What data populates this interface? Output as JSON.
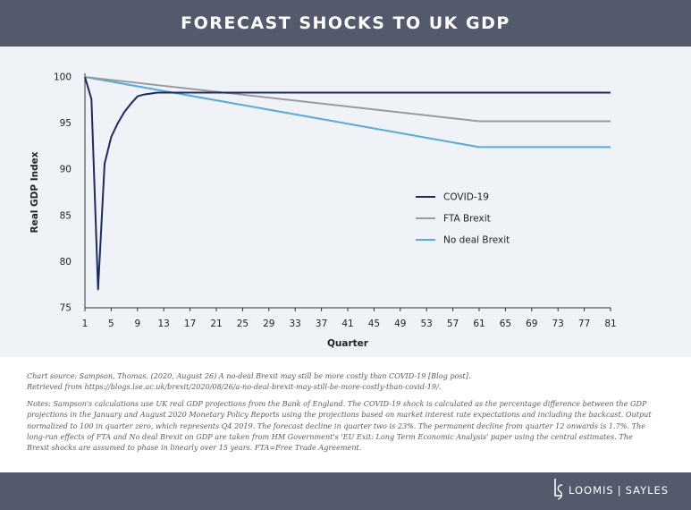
{
  "header": {
    "title": "FORECAST SHOCKS TO UK GDP"
  },
  "footer": {
    "brand_left": "LOOMIS",
    "brand_right": "SAYLES"
  },
  "colors": {
    "covid": "#1e2b5c",
    "fta": "#9a9a9f",
    "nodeal": "#5aa8dc",
    "header_bg": "#525a6c",
    "panel_bg": "#eff3f7"
  },
  "notes": {
    "source_line1": "Chart source: Sampson, Thomas. (2020, August 26) A no-deal Brexit may still be more costly than COVID-19 [Blog post].",
    "source_line2": "Retrieved from https://blogs.lse.ac.uk/brexit/2020/08/26/a-no-deal-brexit-may-still-be-more-costly-than-covid-19/.",
    "body": "Notes: Sampson's calculations use UK real GDP projections from the Bank of England. The COVID-19 shock is calculated as the percentage difference between the GDP projections in the January and August 2020 Monetary Policy Reports using the projections based on market interest rate expectations and including the backcast. Output normalized to 100 in quarter zero, which represents Q4 2019. The forecast decline in quarter two is 23%. The permanent decline from quarter 12 onwards is 1.7%. The long-run effects of FTA and No deal Brexit on GDP are taken from HM Government's 'EU Exit: Long Term Economic Analysis' paper using the central estimates. The Brexit shocks are assumed to phase in linearly over 15 years. FTA=Free Trade Agreement."
  },
  "chart_data": {
    "type": "line",
    "title": "",
    "xlabel": "Quarter",
    "ylabel": "Real GDP Index",
    "xlim": [
      1,
      81
    ],
    "ylim": [
      75,
      100
    ],
    "xticks": [
      1,
      5,
      9,
      13,
      17,
      21,
      25,
      29,
      33,
      37,
      41,
      45,
      49,
      53,
      57,
      61,
      65,
      69,
      73,
      77,
      81
    ],
    "yticks": [
      75,
      80,
      85,
      90,
      95,
      100
    ],
    "grid": false,
    "legend_position": "center-right",
    "series": [
      {
        "name": "COVID-19",
        "color": "#1e2b5c",
        "points": [
          [
            1,
            100
          ],
          [
            2,
            97.6
          ],
          [
            3,
            77
          ],
          [
            4,
            90.6
          ],
          [
            5,
            93.5
          ],
          [
            6,
            95
          ],
          [
            7,
            96.2
          ],
          [
            8,
            97.1
          ],
          [
            9,
            97.9
          ],
          [
            10,
            98.1
          ],
          [
            11,
            98.2
          ],
          [
            12,
            98.3
          ],
          [
            81,
            98.3
          ]
        ]
      },
      {
        "name": "FTA Brexit",
        "color": "#9a9a9f",
        "points": [
          [
            1,
            100
          ],
          [
            61,
            95.2
          ],
          [
            81,
            95.2
          ]
        ]
      },
      {
        "name": "No deal Brexit",
        "color": "#5aa8dc",
        "points": [
          [
            1,
            100
          ],
          [
            61,
            92.4
          ],
          [
            81,
            92.4
          ]
        ]
      }
    ]
  }
}
